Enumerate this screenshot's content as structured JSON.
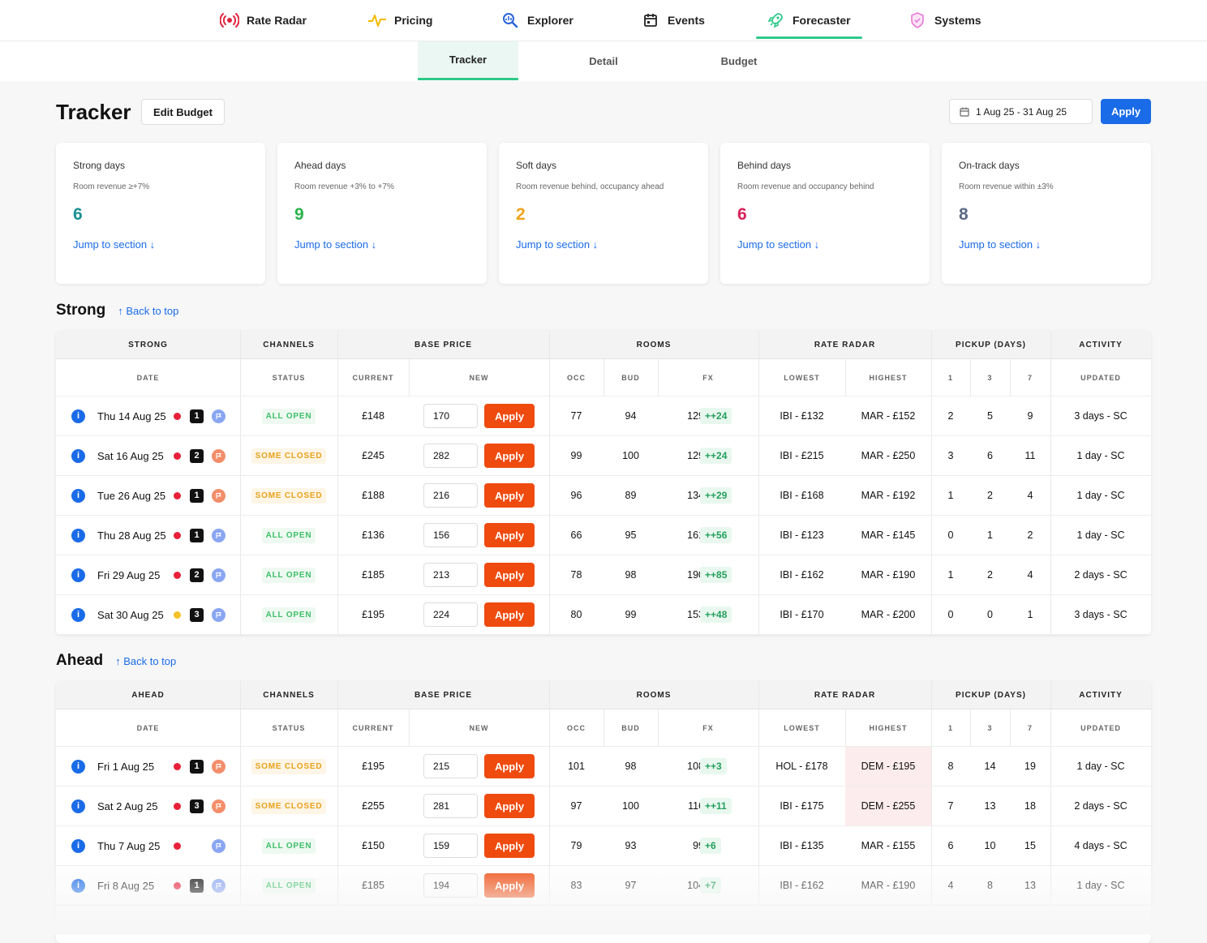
{
  "nav": {
    "items": [
      {
        "label": "Rate Radar",
        "icon": "radar-icon"
      },
      {
        "label": "Pricing",
        "icon": "pulse-icon"
      },
      {
        "label": "Explorer",
        "icon": "explorer-search-icon"
      },
      {
        "label": "Events",
        "icon": "calendar-icon"
      },
      {
        "label": "Forecaster",
        "icon": "rocket-icon"
      },
      {
        "label": "Systems",
        "icon": "shield-icon"
      }
    ],
    "active": "Forecaster"
  },
  "subnav": {
    "tabs": [
      "Tracker",
      "Detail",
      "Budget"
    ],
    "active": "Tracker"
  },
  "header": {
    "title": "Tracker",
    "edit_budget": "Edit Budget",
    "date_range": "1 Aug 25 - 31 Aug 25",
    "apply": "Apply"
  },
  "cards": [
    {
      "title": "Strong days",
      "subtitle": "Room revenue ≥+7%",
      "count": "6",
      "link": "Jump to section ↓",
      "color": "#1a8f92"
    },
    {
      "title": "Ahead days",
      "subtitle": "Room revenue +3% to +7%",
      "count": "9",
      "link": "Jump to section ↓",
      "color": "#2bb24c"
    },
    {
      "title": "Soft days",
      "subtitle": "Room revenue behind, occupancy ahead",
      "count": "2",
      "link": "Jump to section ↓",
      "color": "#f0a31a"
    },
    {
      "title": "Behind days",
      "subtitle": "Room revenue and occupancy behind",
      "count": "6",
      "link": "Jump to section ↓",
      "color": "#d8215a"
    },
    {
      "title": "On-track days",
      "subtitle": "Room revenue within ±3%",
      "count": "8",
      "link": "Jump to section ↓",
      "color": "#5b6a86"
    }
  ],
  "colors": {
    "accent_blue": "#1a6be8",
    "apply_orange": "#ef4b0f",
    "active_green": "#2ec98a",
    "dot_red": "#e8203a",
    "dot_amber": "#f5c227",
    "flag_blue": "#8aa6f2",
    "flag_orange": "#f38e6a"
  },
  "columns": {
    "groups": [
      "CHANNELS",
      "BASE PRICE",
      "ROOMS",
      "RATE RADAR",
      "PICKUP (DAYS)",
      "ACTIVITY"
    ],
    "sub": [
      "DATE",
      "STATUS",
      "CURRENT",
      "NEW",
      "OCC",
      "BUD",
      "FX",
      "LOWEST",
      "HIGHEST",
      "1",
      "3",
      "7",
      "UPDATED"
    ]
  },
  "sections": [
    {
      "title": "Strong",
      "group_label": "STRONG",
      "back_to_top": "↑ Back to top",
      "rows": [
        {
          "date": "Thu 14 Aug 25",
          "dot": "red",
          "badge": "1",
          "flag": "blue",
          "status": "ALL OPEN",
          "status_type": "open",
          "current": "£148",
          "new": "170",
          "apply": "Apply",
          "occ": "77",
          "bud": "94",
          "fx": "129",
          "fx_delta": "++24",
          "lowest": "IBI - £132",
          "highest": "MAR - £152",
          "highest_hl": false,
          "p1": "2",
          "p3": "5",
          "p7": "9",
          "updated": "3 days - SC"
        },
        {
          "date": "Sat 16 Aug 25",
          "dot": "red",
          "badge": "2",
          "flag": "orange",
          "status": "SOME CLOSED",
          "status_type": "closed",
          "current": "£245",
          "new": "282",
          "apply": "Apply",
          "occ": "99",
          "bud": "100",
          "fx": "129",
          "fx_delta": "++24",
          "lowest": "IBI - £215",
          "highest": "MAR - £250",
          "highest_hl": false,
          "p1": "3",
          "p3": "6",
          "p7": "11",
          "updated": "1 day - SC"
        },
        {
          "date": "Tue 26 Aug 25",
          "dot": "red",
          "badge": "1",
          "flag": "orange",
          "status": "SOME CLOSED",
          "status_type": "closed",
          "current": "£188",
          "new": "216",
          "apply": "Apply",
          "occ": "96",
          "bud": "89",
          "fx": "134",
          "fx_delta": "++29",
          "lowest": "IBI - £168",
          "highest": "MAR - £192",
          "highest_hl": false,
          "p1": "1",
          "p3": "2",
          "p7": "4",
          "updated": "1 day - SC"
        },
        {
          "date": "Thu 28 Aug 25",
          "dot": "red",
          "badge": "1",
          "flag": "blue",
          "status": "ALL OPEN",
          "status_type": "open",
          "current": "£136",
          "new": "156",
          "apply": "Apply",
          "occ": "66",
          "bud": "95",
          "fx": "161",
          "fx_delta": "++56",
          "lowest": "IBI - £123",
          "highest": "MAR - £145",
          "highest_hl": false,
          "p1": "0",
          "p3": "1",
          "p7": "2",
          "updated": "1 day - SC"
        },
        {
          "date": "Fri 29 Aug 25",
          "dot": "red",
          "badge": "2",
          "flag": "blue",
          "status": "ALL OPEN",
          "status_type": "open",
          "current": "£185",
          "new": "213",
          "apply": "Apply",
          "occ": "78",
          "bud": "98",
          "fx": "190",
          "fx_delta": "++85",
          "lowest": "IBI - £162",
          "highest": "MAR - £190",
          "highest_hl": false,
          "p1": "1",
          "p3": "2",
          "p7": "4",
          "updated": "2 days - SC"
        },
        {
          "date": "Sat 30 Aug 25",
          "dot": "amber",
          "badge": "3",
          "flag": "blue",
          "status": "ALL OPEN",
          "status_type": "open",
          "current": "£195",
          "new": "224",
          "apply": "Apply",
          "occ": "80",
          "bud": "99",
          "fx": "153",
          "fx_delta": "++48",
          "lowest": "IBI - £170",
          "highest": "MAR - £200",
          "highest_hl": false,
          "p1": "0",
          "p3": "0",
          "p7": "1",
          "updated": "3 days - SC"
        }
      ]
    },
    {
      "title": "Ahead",
      "group_label": "AHEAD",
      "back_to_top": "↑ Back to top",
      "rows": [
        {
          "date": "Fri 1 Aug 25",
          "dot": "red",
          "badge": "1",
          "flag": "orange",
          "status": "SOME CLOSED",
          "status_type": "closed",
          "current": "£195",
          "new": "215",
          "apply": "Apply",
          "occ": "101",
          "bud": "98",
          "fx": "108",
          "fx_delta": "++3",
          "lowest": "HOL - £178",
          "highest": "DEM - £195",
          "highest_hl": true,
          "p1": "8",
          "p3": "14",
          "p7": "19",
          "updated": "1 day - SC"
        },
        {
          "date": "Sat 2 Aug 25",
          "dot": "red",
          "badge": "3",
          "flag": "orange",
          "status": "SOME CLOSED",
          "status_type": "closed",
          "current": "£255",
          "new": "281",
          "apply": "Apply",
          "occ": "97",
          "bud": "100",
          "fx": "116",
          "fx_delta": "++11",
          "lowest": "IBI - £175",
          "highest": "DEM - £255",
          "highest_hl": true,
          "p1": "7",
          "p3": "13",
          "p7": "18",
          "updated": "2 days - SC"
        },
        {
          "date": "Thu 7 Aug 25",
          "dot": "red",
          "badge": "",
          "flag": "blue",
          "status": "ALL OPEN",
          "status_type": "open",
          "current": "£150",
          "new": "159",
          "apply": "Apply",
          "occ": "79",
          "bud": "93",
          "fx": "99",
          "fx_delta": "+6",
          "lowest": "IBI - £135",
          "highest": "MAR - £155",
          "highest_hl": false,
          "p1": "6",
          "p3": "10",
          "p7": "15",
          "updated": "4 days - SC"
        },
        {
          "date": "Fri 8 Aug 25",
          "dot": "red",
          "badge": "1",
          "flag": "blue",
          "status": "ALL OPEN",
          "status_type": "open",
          "current": "£185",
          "new": "194",
          "apply": "Apply",
          "occ": "83",
          "bud": "97",
          "fx": "104",
          "fx_delta": "+7",
          "lowest": "IBI - £162",
          "highest": "MAR - £190",
          "highest_hl": false,
          "p1": "4",
          "p3": "8",
          "p7": "13",
          "updated": "1 day - SC"
        }
      ]
    }
  ]
}
